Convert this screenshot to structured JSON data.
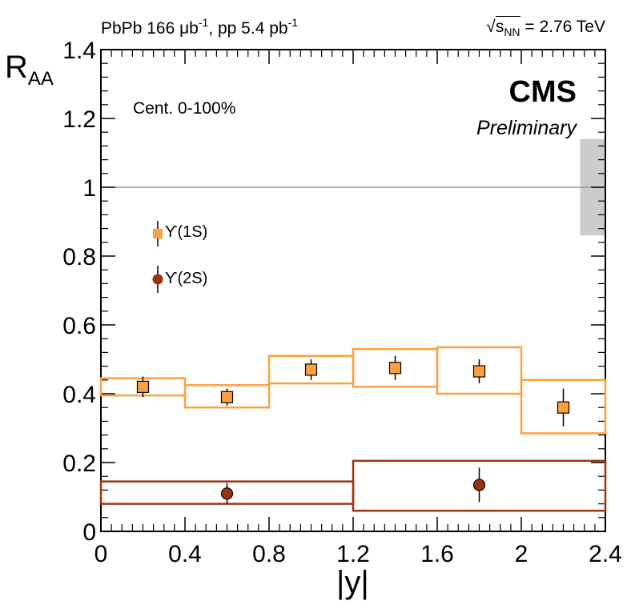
{
  "header": {
    "left_main": "PbPb 166 μb",
    "left_sup1": "-1",
    "left_mid": ", pp 5.4 pb",
    "left_sup2": "-1",
    "right_s": "s",
    "right_sub": "NN",
    "right_value": " = 2.76 TeV"
  },
  "labels": {
    "cms": "CMS",
    "preliminary": "Preliminary",
    "centrality": "Cent. 0-100%"
  },
  "colors": {
    "ups1s": "#ffa040",
    "ups2s": "#9a3510",
    "global_unc": "#cccccc"
  },
  "chart_data": {
    "type": "scatter",
    "title": "",
    "xlabel": "|y|",
    "ylabel_main": "R",
    "ylabel_sub": "AA",
    "xlim": [
      0,
      2.4
    ],
    "ylim": [
      0,
      1.4
    ],
    "xticks": [
      "0",
      "0.4",
      "0.8",
      "1.2",
      "1.6",
      "2",
      "2.4"
    ],
    "yticks": [
      "0",
      "0.2",
      "0.4",
      "0.6",
      "0.8",
      "1",
      "1.2",
      "1.4"
    ],
    "reference_line": 1.0,
    "global_uncertainty": {
      "x_range": [
        2.28,
        2.4
      ],
      "y_range": [
        0.86,
        1.14
      ]
    },
    "series": [
      {
        "name": "ϒ(1S)",
        "marker": "square",
        "points": [
          {
            "x": 0.2,
            "y": 0.42,
            "err": 0.03,
            "xlo": 0.0,
            "xhi": 0.4,
            "syslo": 0.395,
            "syshi": 0.445
          },
          {
            "x": 0.6,
            "y": 0.39,
            "err": 0.025,
            "xlo": 0.4,
            "xhi": 0.8,
            "syslo": 0.36,
            "syshi": 0.425
          },
          {
            "x": 1.0,
            "y": 0.47,
            "err": 0.03,
            "xlo": 0.8,
            "xhi": 1.2,
            "syslo": 0.43,
            "syshi": 0.51
          },
          {
            "x": 1.4,
            "y": 0.475,
            "err": 0.035,
            "xlo": 1.2,
            "xhi": 1.6,
            "syslo": 0.42,
            "syshi": 0.53
          },
          {
            "x": 1.8,
            "y": 0.465,
            "err": 0.035,
            "xlo": 1.6,
            "xhi": 2.0,
            "syslo": 0.4,
            "syshi": 0.535
          },
          {
            "x": 2.2,
            "y": 0.36,
            "err": 0.055,
            "xlo": 2.0,
            "xhi": 2.4,
            "syslo": 0.285,
            "syshi": 0.44
          }
        ]
      },
      {
        "name": "ϒ(2S)",
        "marker": "circle",
        "points": [
          {
            "x": 0.6,
            "y": 0.11,
            "err": 0.03,
            "xlo": 0.0,
            "xhi": 1.2,
            "syslo": 0.08,
            "syshi": 0.145
          },
          {
            "x": 1.8,
            "y": 0.135,
            "err": 0.05,
            "xlo": 1.2,
            "xhi": 2.4,
            "syslo": 0.06,
            "syshi": 0.205
          }
        ]
      }
    ]
  }
}
